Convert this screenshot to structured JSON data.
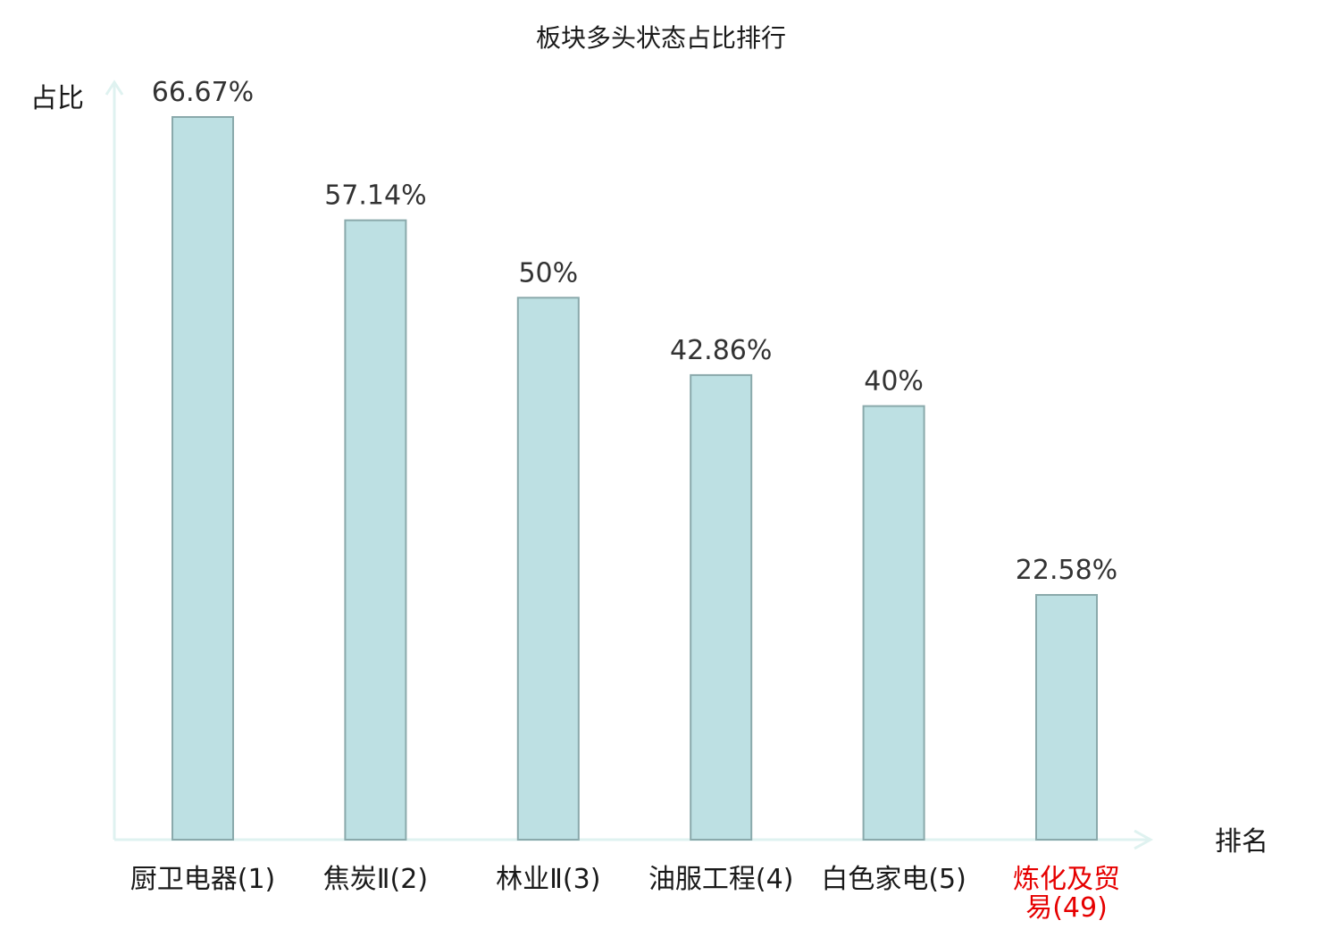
{
  "chart_data": {
    "type": "bar",
    "title": "板块多头状态占比排行",
    "xlabel": "排名",
    "ylabel": "占比",
    "categories": [
      [
        "厨卫电器(1)"
      ],
      [
        "焦炭Ⅱ(2)"
      ],
      [
        "林业Ⅱ(3)"
      ],
      [
        "油服工程(4)"
      ],
      [
        "白色家电(5)"
      ],
      [
        "炼化及贸",
        "易(49)"
      ]
    ],
    "values": [
      66.67,
      57.14,
      50,
      42.86,
      40,
      22.58
    ],
    "value_labels": [
      "66.67%",
      "57.14%",
      "50%",
      "42.86%",
      "40%",
      "22.58%"
    ],
    "highlight_index": 5,
    "ylim": [
      0,
      66.67
    ],
    "grid": false,
    "colors": {
      "bar_fill": "#bde0e3",
      "bar_stroke": "#8aa9ab",
      "axis": "#dff2f0",
      "highlight_text": "#e60000",
      "text": "#1a1a1a"
    }
  }
}
